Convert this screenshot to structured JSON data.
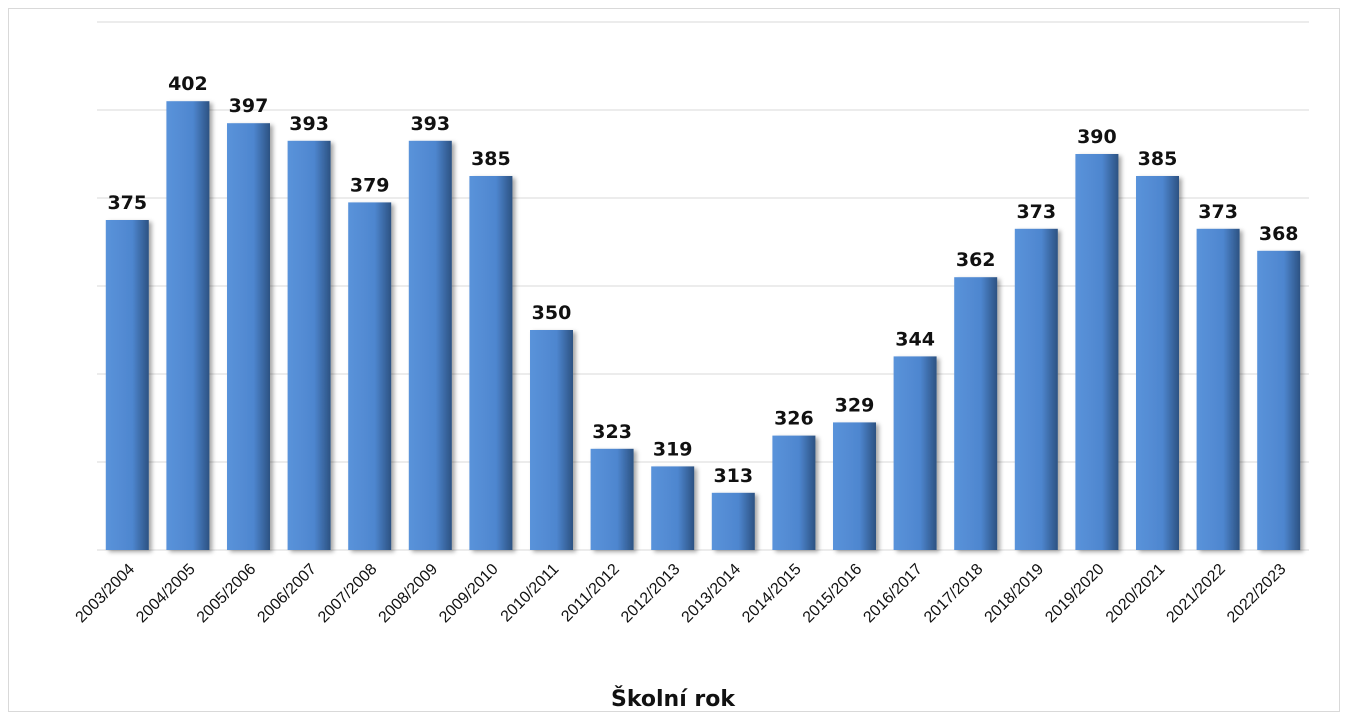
{
  "chart_data": {
    "type": "bar",
    "title": "",
    "xlabel": "Školní rok",
    "ylabel": "",
    "categories": [
      "2003/2004",
      "2004/2005",
      "2005/2006",
      "2006/2007",
      "2007/2008",
      "2008/2009",
      "2009/2010",
      "2010/2011",
      "2011/2012",
      "2012/2013",
      "2013/2014",
      "2014/2015",
      "2015/2016",
      "2016/2017",
      "2017/2018",
      "2018/2019",
      "2019/2020",
      "2020/2021",
      "2021/2022",
      "2022/2023"
    ],
    "values": [
      375,
      402,
      397,
      393,
      379,
      393,
      385,
      350,
      323,
      319,
      313,
      326,
      329,
      344,
      362,
      373,
      390,
      385,
      373,
      368
    ],
    "ylim": [
      300,
      400
    ],
    "grid": true,
    "legend": "none",
    "colors": {
      "bar": "#4e86cf",
      "bar_dark": "#2f5787",
      "grid": "#d9d9d9"
    }
  }
}
